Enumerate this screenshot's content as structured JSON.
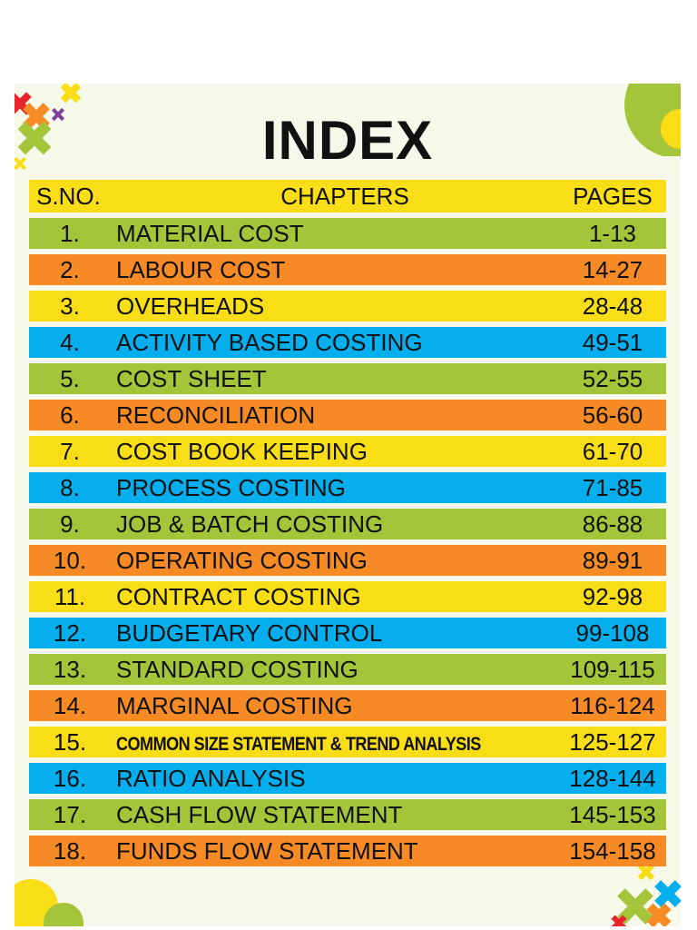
{
  "title": "INDEX",
  "header": {
    "sno": "S.NO.",
    "chapters": "CHAPTERS",
    "pages": "PAGES"
  },
  "colors": {
    "yellow": "#f9dd16",
    "green": "#a4c43a",
    "orange": "#f68b25",
    "blue": "#05aeed",
    "red": "#e8232b",
    "purple": "#7a3f9b",
    "background": "#f6f8e9"
  },
  "rows": [
    {
      "sno": "1.",
      "chapter": "MATERIAL COST",
      "pages": "1-13",
      "color": "#a4c43a"
    },
    {
      "sno": "2.",
      "chapter": "LABOUR COST",
      "pages": "14-27",
      "color": "#f68b25"
    },
    {
      "sno": "3.",
      "chapter": "OVERHEADS",
      "pages": "28-48",
      "color": "#f9dd16"
    },
    {
      "sno": "4.",
      "chapter": "ACTIVITY BASED COSTING",
      "pages": "49-51",
      "color": "#05aeed"
    },
    {
      "sno": "5.",
      "chapter": "COST SHEET",
      "pages": "52-55",
      "color": "#a4c43a"
    },
    {
      "sno": "6.",
      "chapter": "RECONCILIATION",
      "pages": "56-60",
      "color": "#f68b25"
    },
    {
      "sno": "7.",
      "chapter": "COST BOOK KEEPING",
      "pages": "61-70",
      "color": "#f9dd16"
    },
    {
      "sno": "8.",
      "chapter": "PROCESS COSTING",
      "pages": "71-85",
      "color": "#05aeed"
    },
    {
      "sno": "9.",
      "chapter": "JOB & BATCH COSTING",
      "pages": "86-88",
      "color": "#a4c43a"
    },
    {
      "sno": "10.",
      "chapter": "OPERATING COSTING",
      "pages": "89-91",
      "color": "#f68b25"
    },
    {
      "sno": "11.",
      "chapter": "CONTRACT COSTING",
      "pages": "92-98",
      "color": "#f9dd16"
    },
    {
      "sno": "12.",
      "chapter": "BUDGETARY CONTROL",
      "pages": "99-108",
      "color": "#05aeed"
    },
    {
      "sno": "13.",
      "chapter": "STANDARD COSTING",
      "pages": "109-115",
      "color": "#a4c43a"
    },
    {
      "sno": "14.",
      "chapter": "MARGINAL COSTING",
      "pages": "116-124",
      "color": "#f68b25"
    },
    {
      "sno": "15.",
      "chapter": "COMMON SIZE STATEMENT & TREND ANALYSIS",
      "pages": "125-127",
      "color": "#f9dd16",
      "small": true
    },
    {
      "sno": "16.",
      "chapter": "RATIO ANALYSIS",
      "pages": "128-144",
      "color": "#05aeed"
    },
    {
      "sno": "17.",
      "chapter": "CASH FLOW STATEMENT",
      "pages": "145-153",
      "color": "#a4c43a"
    },
    {
      "sno": "18.",
      "chapter": "FUNDS FLOW STATEMENT",
      "pages": "154-158",
      "color": "#f68b25"
    }
  ]
}
